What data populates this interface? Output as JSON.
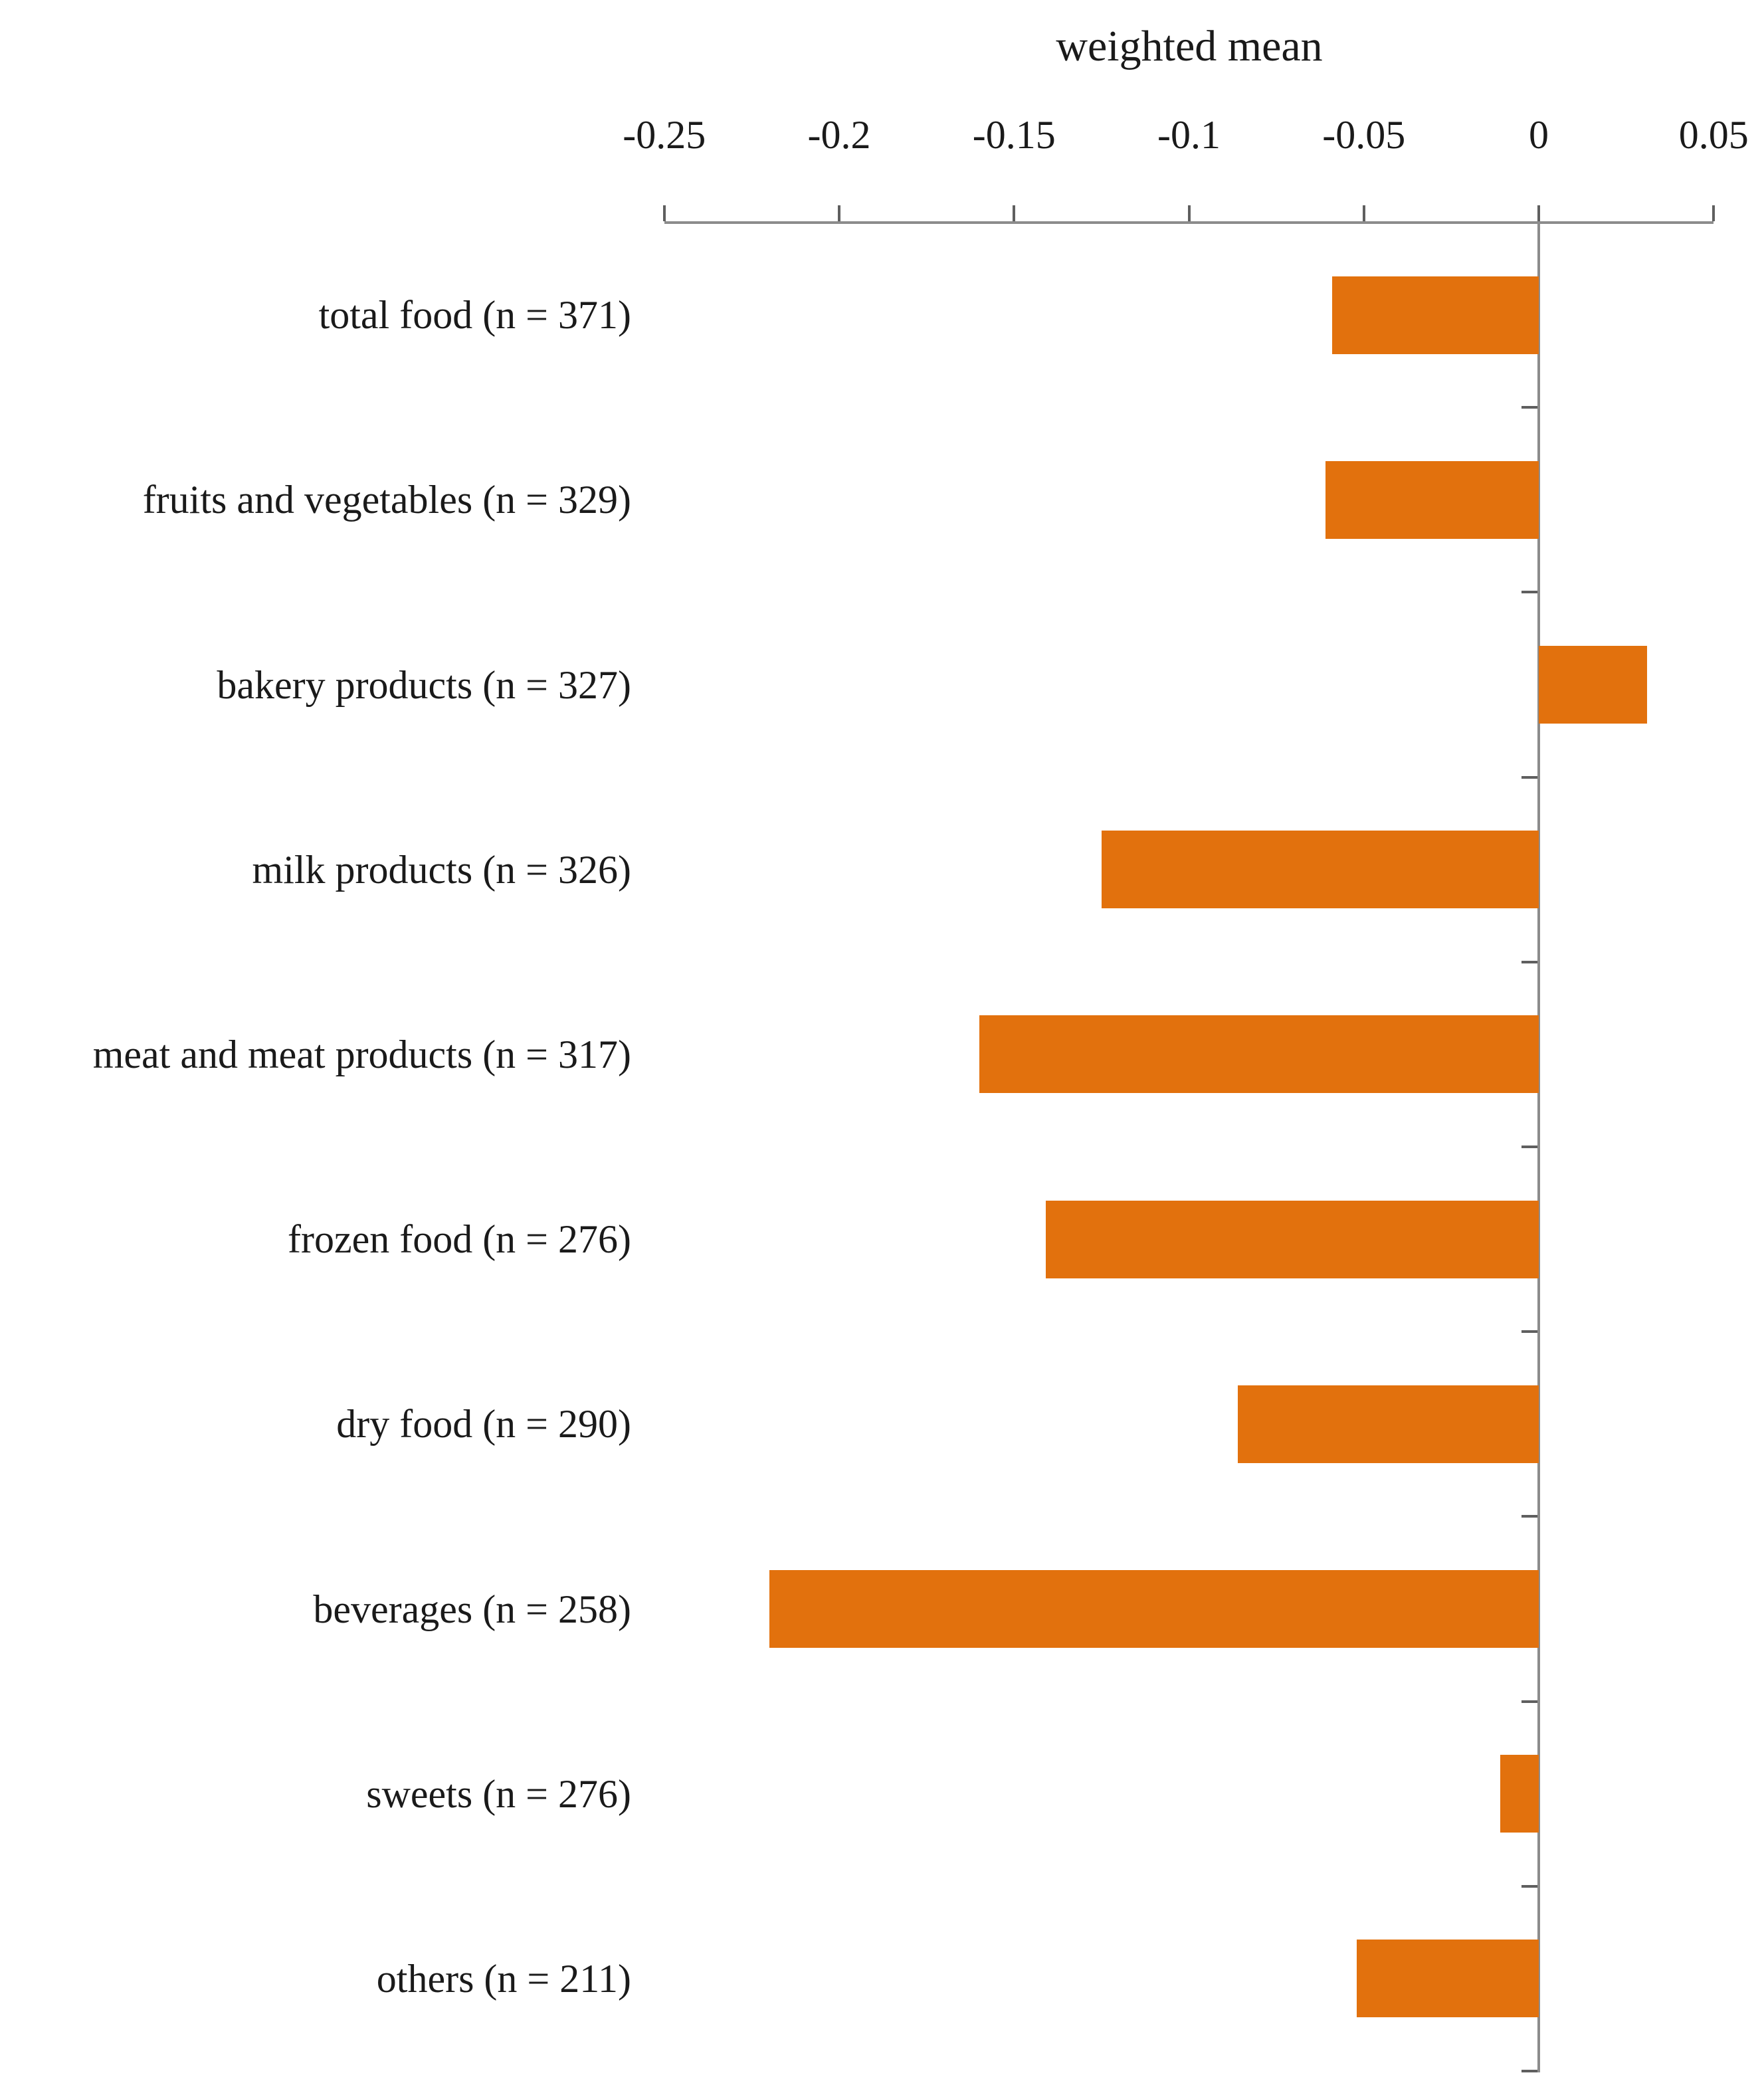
{
  "chart_data": {
    "type": "bar",
    "orientation": "horizontal",
    "title": "weighted mean",
    "categories": [
      "total food (n = 371)",
      "fruits and vegetables (n = 329)",
      "bakery products (n = 327)",
      "milk products (n = 326)",
      "meat and meat products (n = 317)",
      "frozen food (n = 276)",
      "dry food (n = 290)",
      "beverages (n = 258)",
      "sweets (n = 276)",
      "others (n = 211)"
    ],
    "sample_sizes": [
      371,
      329,
      327,
      326,
      317,
      276,
      290,
      258,
      276,
      211
    ],
    "values": [
      -0.059,
      -0.061,
      0.031,
      -0.125,
      -0.16,
      -0.141,
      -0.086,
      -0.22,
      -0.011,
      -0.052
    ],
    "xlabel": "weighted mean",
    "ylabel": "",
    "xlim": [
      -0.25,
      0.05
    ],
    "x_ticks": [
      "-0.25",
      "-0.2",
      "-0.15",
      "-0.1",
      "-0.05",
      "0",
      "0.05"
    ],
    "grid": false,
    "legend": false,
    "bar_color": "#E2710D",
    "axis_color": "#8C8C8C",
    "tick_color": "#5F5F5F",
    "text_color": "#1a1a1a"
  }
}
